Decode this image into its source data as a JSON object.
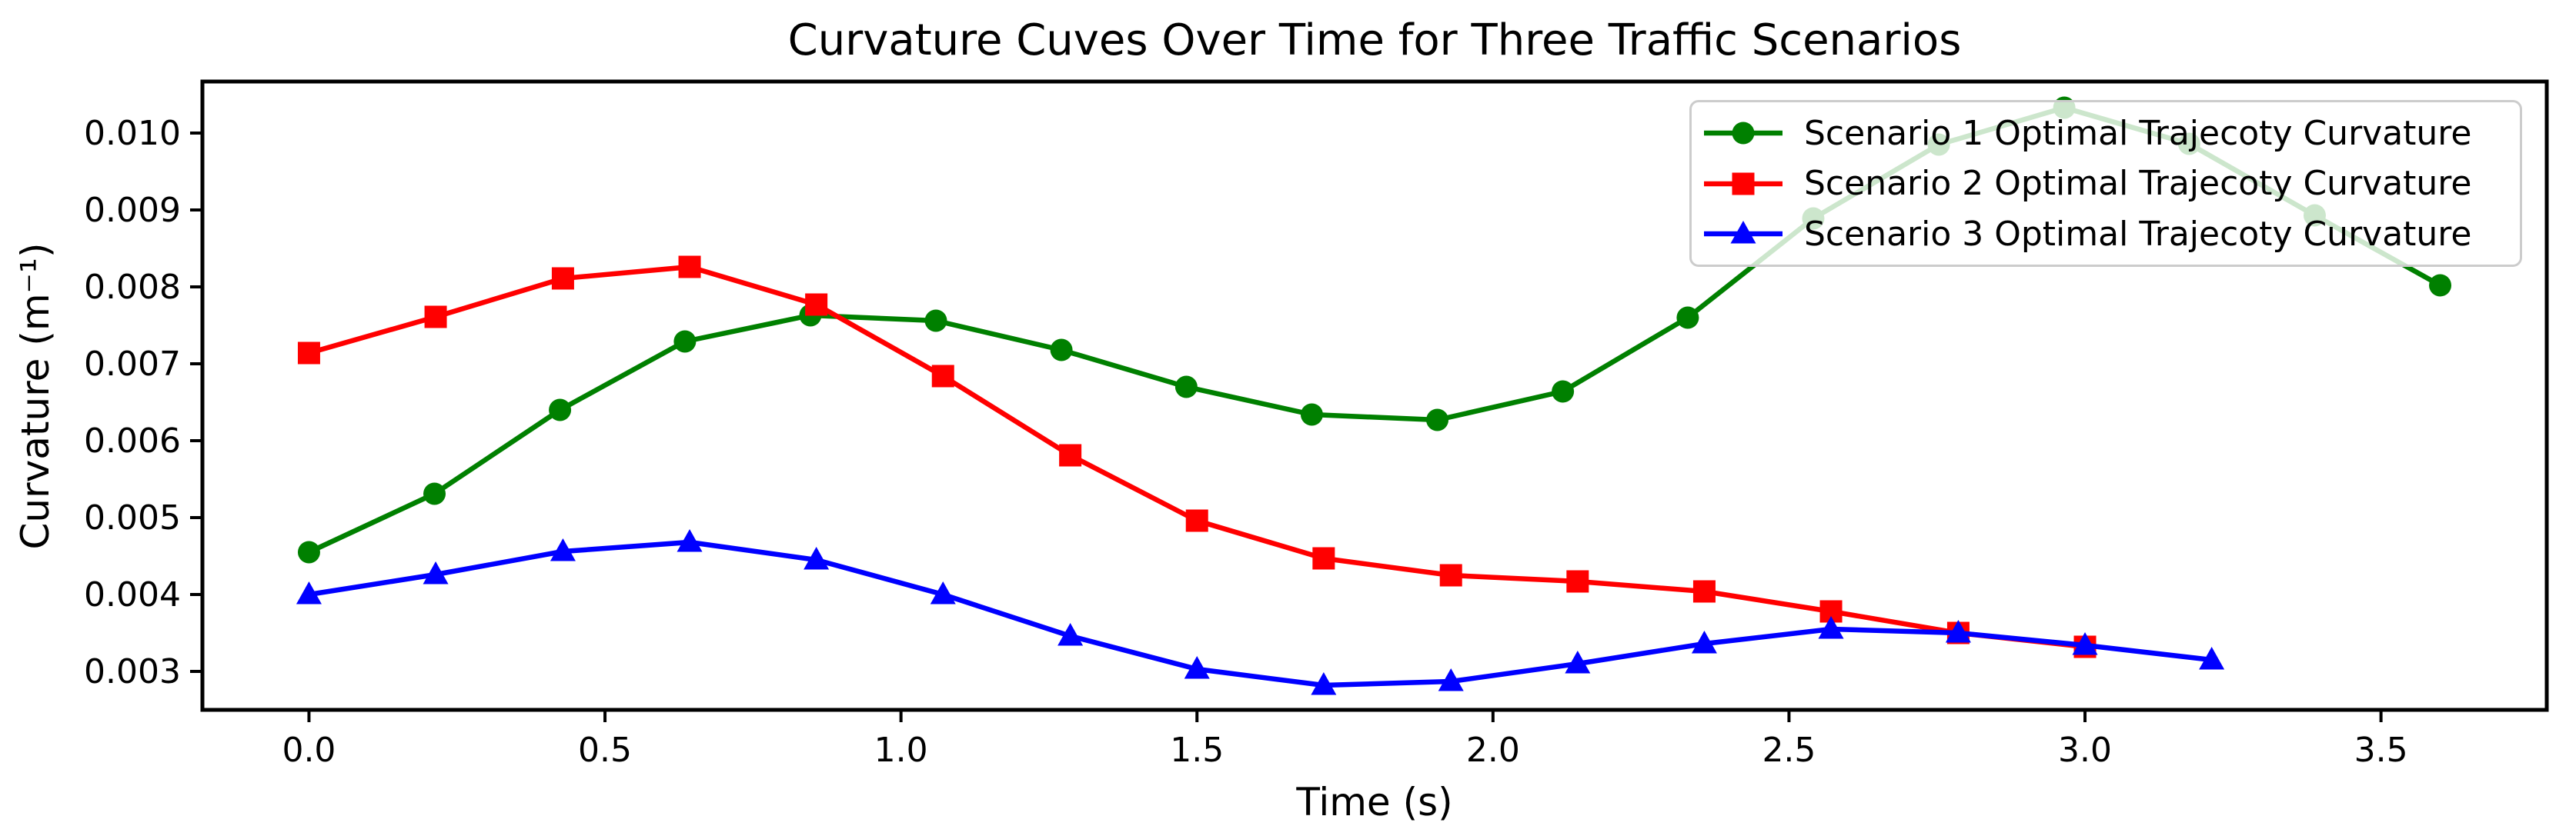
{
  "chart_data": {
    "type": "line",
    "title": "Curvature Cuves Over Time for Three Traffic Scenarios",
    "xlabel": "Time (s)",
    "ylabel": "Curvature (m⁻¹)",
    "xlim": [
      -0.18,
      3.78
    ],
    "ylim": [
      0.0025,
      0.01067
    ],
    "grid": false,
    "legend_position": "upper right",
    "x_ticks": [
      0.0,
      0.5,
      1.0,
      1.5,
      2.0,
      2.5,
      3.0,
      3.5
    ],
    "x_tick_labels": [
      "0.0",
      "0.5",
      "1.0",
      "1.5",
      "2.0",
      "2.5",
      "3.0",
      "3.5"
    ],
    "y_ticks": [
      0.003,
      0.004,
      0.005,
      0.006,
      0.007,
      0.008,
      0.009,
      0.01
    ],
    "y_tick_labels": [
      "0.003",
      "0.004",
      "0.005",
      "0.006",
      "0.007",
      "0.008",
      "0.009",
      "0.010"
    ],
    "series": [
      {
        "name": "Scenario 1 Optimal Trajecoty Curvature",
        "color": "#008000",
        "marker": "circle",
        "x": [
          0.0,
          0.212,
          0.424,
          0.635,
          0.847,
          1.059,
          1.271,
          1.482,
          1.694,
          1.906,
          2.118,
          2.329,
          2.541,
          2.753,
          2.965,
          3.176,
          3.388,
          3.6
        ],
        "y": [
          0.00455,
          0.00531,
          0.0064,
          0.00729,
          0.00763,
          0.00756,
          0.00718,
          0.0067,
          0.00634,
          0.00627,
          0.00664,
          0.0076,
          0.00889,
          0.00985,
          0.01033,
          0.00986,
          0.00893,
          0.00802
        ]
      },
      {
        "name": "Scenario 2 Optimal Trajecoty Curvature",
        "color": "#ff0000",
        "marker": "square",
        "x": [
          0.0,
          0.214,
          0.429,
          0.643,
          0.857,
          1.071,
          1.286,
          1.5,
          1.714,
          1.929,
          2.143,
          2.357,
          2.571,
          2.786,
          3.0
        ],
        "y": [
          0.00714,
          0.00761,
          0.00811,
          0.00826,
          0.00777,
          0.00684,
          0.00581,
          0.00496,
          0.00447,
          0.00425,
          0.00417,
          0.00404,
          0.00378,
          0.0035,
          0.00332
        ]
      },
      {
        "name": "Scenario 3 Optimal Trajecoty Curvature",
        "color": "#0000ff",
        "marker": "triangle-up",
        "x": [
          0.0,
          0.214,
          0.429,
          0.643,
          0.857,
          1.071,
          1.286,
          1.5,
          1.714,
          1.929,
          2.143,
          2.357,
          2.571,
          2.786,
          3.0,
          3.214
        ],
        "y": [
          0.004,
          0.00426,
          0.00456,
          0.00468,
          0.00445,
          0.004,
          0.00346,
          0.00303,
          0.00282,
          0.00287,
          0.0031,
          0.00336,
          0.00355,
          0.0035,
          0.00334,
          0.00315
        ]
      }
    ]
  }
}
